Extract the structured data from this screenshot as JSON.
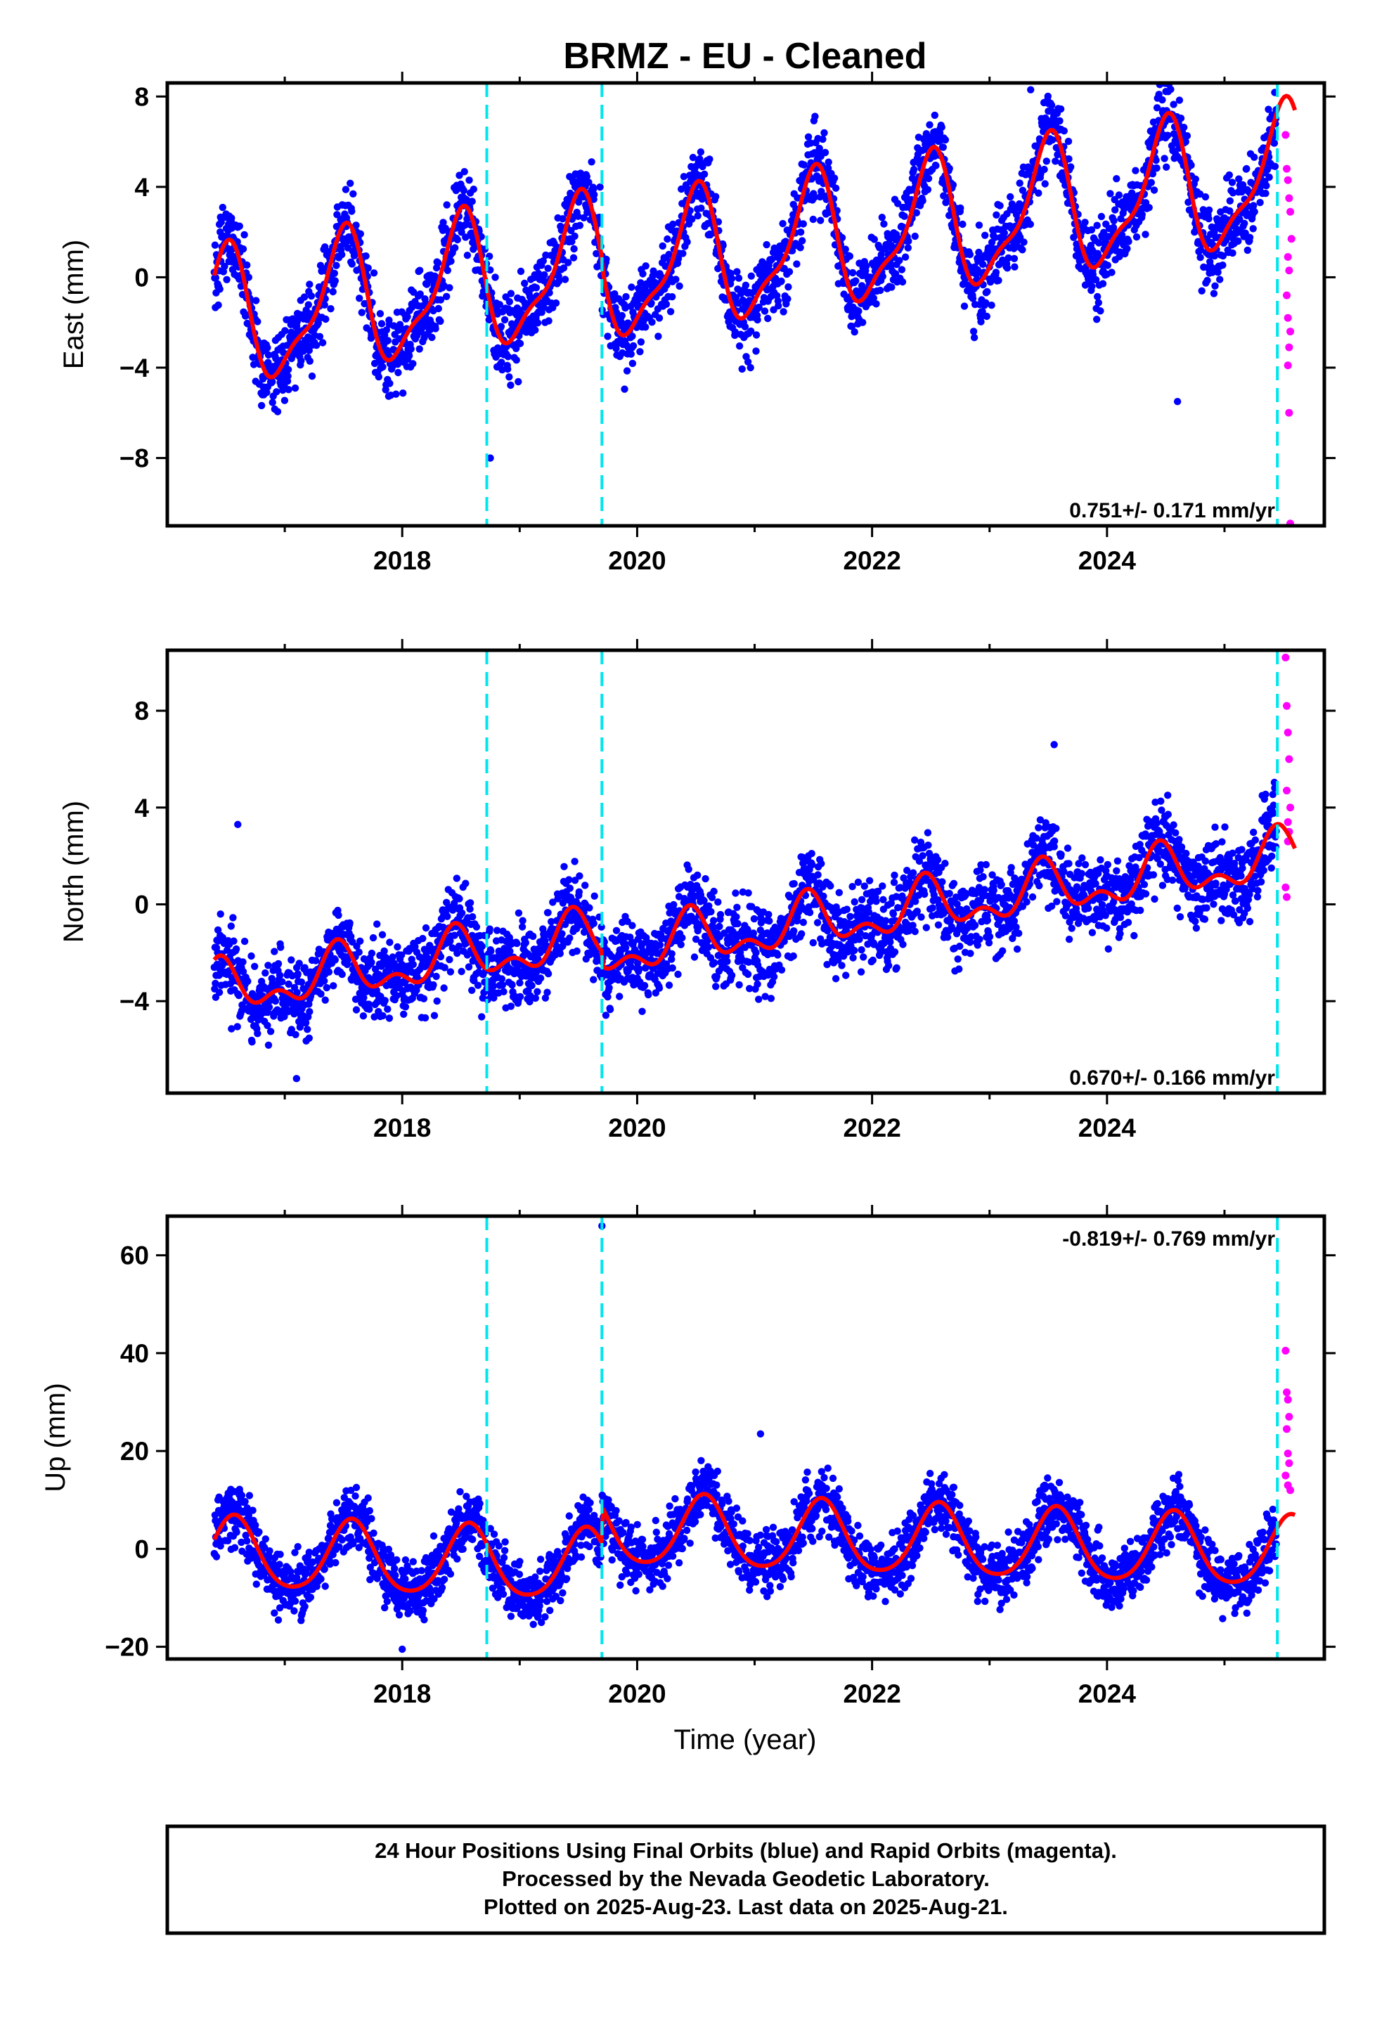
{
  "title": "BRMZ  - EU - Cleaned",
  "xlabel": "Time (year)",
  "footer": [
    "24 Hour Positions Using Final Orbits (blue) and Rapid Orbits (magenta).",
    "Processed by the Nevada Geodetic Laboratory.",
    "Plotted on 2025-Aug-23. Last data on 2025-Aug-21."
  ],
  "colors": {
    "final_orbits": "#0000ff",
    "rapid_orbits": "#ff00ff",
    "model": "#ff0000",
    "equipment_change": "#00e5ee",
    "frame": "#000000"
  },
  "chart_data": [
    {
      "type": "scatter",
      "component": "east",
      "ylabel": "East (mm)",
      "rate_label": "0.751+/- 0.171 mm/yr",
      "xlim": [
        2016.0,
        2025.85
      ],
      "ylim": [
        -11,
        8.6
      ],
      "xticks": [
        "2018",
        "2020",
        "2022",
        "2024"
      ],
      "yticks": [
        "8",
        "4",
        "0",
        "−4",
        "−8"
      ],
      "ytick_values": [
        8,
        4,
        0,
        -4,
        -8
      ],
      "rate_position": "bottom-right",
      "vlines": [
        2018.72,
        2019.7,
        2025.45
      ],
      "model": {
        "x0": 2016.4,
        "x1": 2025.6,
        "offset": -2.0,
        "rate": 0.751,
        "amp_sin": 0.28,
        "amp_cos": -2.8,
        "amp_sin2": 0.6,
        "amp_cos2": 0.7,
        "steps": [
          [
            2019.7,
            -0.4
          ]
        ]
      },
      "final_scatter": {
        "x0": 2016.4,
        "x1": 2025.44,
        "n": 2900,
        "noise": 0.9
      },
      "rapid_points": [
        {
          "x": 2025.52,
          "y": 6.3
        },
        {
          "x": 2025.53,
          "y": 4.8
        },
        {
          "x": 2025.54,
          "y": 4.3
        },
        {
          "x": 2025.55,
          "y": 3.5
        },
        {
          "x": 2025.56,
          "y": 2.9
        },
        {
          "x": 2025.57,
          "y": 1.7
        },
        {
          "x": 2025.54,
          "y": 0.9
        },
        {
          "x": 2025.55,
          "y": 0.3
        },
        {
          "x": 2025.53,
          "y": -0.8
        },
        {
          "x": 2025.54,
          "y": -1.8
        },
        {
          "x": 2025.56,
          "y": -2.4
        },
        {
          "x": 2025.55,
          "y": -3.1
        },
        {
          "x": 2025.54,
          "y": -3.9
        },
        {
          "x": 2025.55,
          "y": -6.0
        },
        {
          "x": 2025.56,
          "y": -10.9
        }
      ],
      "outliers": [
        {
          "x": 2016.5,
          "y": 2.8
        },
        {
          "x": 2023.35,
          "y": 8.3
        },
        {
          "x": 2024.6,
          "y": -5.5
        },
        {
          "x": 2018.75,
          "y": -8.0
        }
      ]
    },
    {
      "type": "scatter",
      "component": "north",
      "ylabel": "North (mm)",
      "rate_label": "0.670+/- 0.166 mm/yr",
      "xlim": [
        2016.0,
        2025.85
      ],
      "ylim": [
        -7.8,
        10.5
      ],
      "xticks": [
        "2018",
        "2020",
        "2022",
        "2024"
      ],
      "yticks": [
        "8",
        "4",
        "0",
        "−4"
      ],
      "ytick_values": [
        8,
        4,
        0,
        -4
      ],
      "rate_position": "bottom-right",
      "vlines": [
        2018.72,
        2019.7,
        2025.45
      ],
      "model": {
        "x0": 2016.4,
        "x1": 2025.6,
        "offset": -3.6,
        "rate": 0.67,
        "amp_sin": 0.25,
        "amp_cos": -0.85,
        "amp_sin2": -0.35,
        "amp_cos2": 0.45,
        "steps": [
          [
            2019.7,
            -0.6
          ]
        ]
      },
      "final_scatter": {
        "x0": 2016.4,
        "x1": 2025.44,
        "n": 2900,
        "noise": 0.85
      },
      "rapid_points": [
        {
          "x": 2025.52,
          "y": 10.2
        },
        {
          "x": 2025.53,
          "y": 8.2
        },
        {
          "x": 2025.54,
          "y": 7.1
        },
        {
          "x": 2025.55,
          "y": 6.0
        },
        {
          "x": 2025.53,
          "y": 4.7
        },
        {
          "x": 2025.56,
          "y": 4.0
        },
        {
          "x": 2025.54,
          "y": 3.4
        },
        {
          "x": 2025.55,
          "y": 3.0
        },
        {
          "x": 2025.54,
          "y": 2.6
        },
        {
          "x": 2025.52,
          "y": 0.7
        },
        {
          "x": 2025.53,
          "y": 0.3
        }
      ],
      "outliers": [
        {
          "x": 2016.6,
          "y": 3.3
        },
        {
          "x": 2023.55,
          "y": 6.6
        },
        {
          "x": 2017.1,
          "y": -7.2
        }
      ]
    },
    {
      "type": "scatter",
      "component": "up",
      "ylabel": "Up (mm)",
      "rate_label": "-0.819+/- 0.769 mm/yr",
      "xlim": [
        2016.0,
        2025.85
      ],
      "ylim": [
        -22.5,
        68
      ],
      "xticks": [
        "2018",
        "2020",
        "2022",
        "2024"
      ],
      "yticks": [
        "60",
        "40",
        "20",
        "0",
        "−20"
      ],
      "ytick_values": [
        60,
        40,
        20,
        0,
        -20
      ],
      "rate_position": "top-right",
      "vlines": [
        2018.72,
        2019.7,
        2025.45
      ],
      "model": {
        "x0": 2016.4,
        "x1": 2025.6,
        "offset": -1.0,
        "rate": -0.819,
        "amp_sin": -3.0,
        "amp_cos": -6.5,
        "amp_sin2": 0.8,
        "amp_cos2": 0.6,
        "steps": [
          [
            2019.7,
            7.5
          ]
        ]
      },
      "final_scatter": {
        "x0": 2016.4,
        "x1": 2025.44,
        "n": 2900,
        "noise": 3.2
      },
      "rapid_points": [
        {
          "x": 2025.52,
          "y": 40.5
        },
        {
          "x": 2025.53,
          "y": 32.0
        },
        {
          "x": 2025.54,
          "y": 30.5
        },
        {
          "x": 2025.55,
          "y": 27.0
        },
        {
          "x": 2025.53,
          "y": 24.5
        },
        {
          "x": 2025.54,
          "y": 19.5
        },
        {
          "x": 2025.55,
          "y": 17.5
        },
        {
          "x": 2025.52,
          "y": 15.0
        },
        {
          "x": 2025.54,
          "y": 13.0
        },
        {
          "x": 2025.56,
          "y": 12.0
        }
      ],
      "outliers": [
        {
          "x": 2019.7,
          "y": 66.0
        },
        {
          "x": 2018.0,
          "y": -20.5
        },
        {
          "x": 2021.05,
          "y": 23.5
        }
      ]
    }
  ]
}
